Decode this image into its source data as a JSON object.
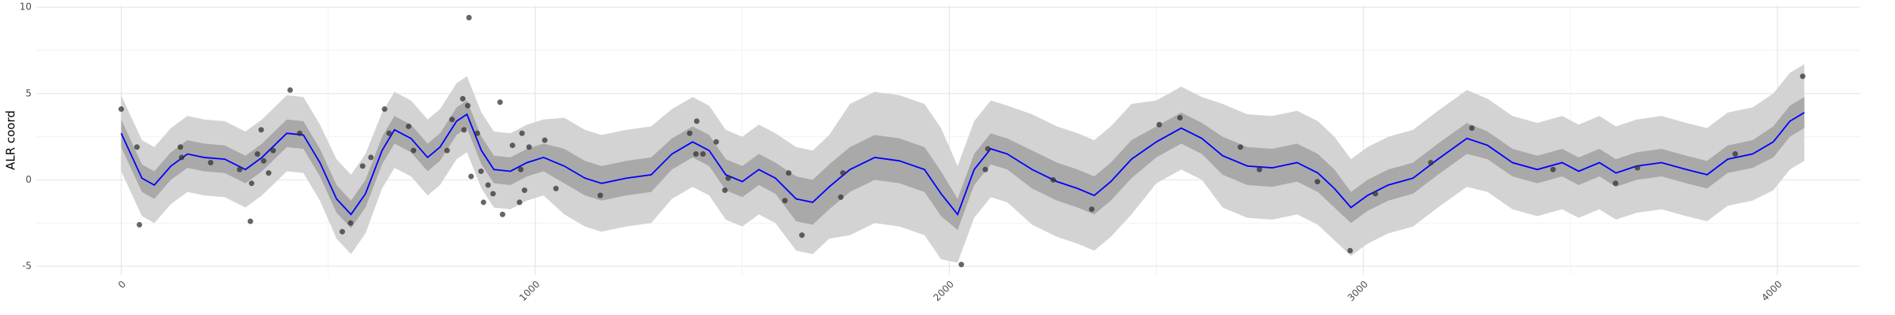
{
  "chart_data": {
    "type": "line",
    "y_label": "ALR coord",
    "xlim": [
      -205,
      4200
    ],
    "ylim": [
      -5.5,
      10.1
    ],
    "xticks": [
      0,
      1000,
      2000,
      3000,
      4000
    ],
    "yticks": [
      -5,
      0,
      5,
      10
    ],
    "xminor": [
      500,
      1500,
      2500,
      3500
    ],
    "yminor": [
      -2.5,
      2.5,
      7.5
    ],
    "grid": true,
    "x": [
      0,
      50,
      80,
      120,
      160,
      200,
      250,
      300,
      340,
      400,
      440,
      480,
      520,
      555,
      590,
      630,
      660,
      700,
      740,
      770,
      810,
      835,
      870,
      900,
      940,
      980,
      1020,
      1070,
      1120,
      1160,
      1220,
      1280,
      1330,
      1380,
      1420,
      1460,
      1500,
      1540,
      1580,
      1630,
      1670,
      1710,
      1760,
      1820,
      1880,
      1940,
      1980,
      2020,
      2060,
      2100,
      2140,
      2200,
      2260,
      2310,
      2350,
      2390,
      2440,
      2500,
      2560,
      2610,
      2660,
      2720,
      2780,
      2840,
      2890,
      2930,
      2970,
      3010,
      3060,
      3120,
      3180,
      3250,
      3300,
      3360,
      3420,
      3480,
      3520,
      3570,
      3610,
      3660,
      3720,
      3780,
      3830,
      3880,
      3940,
      3990,
      4030,
      4065
    ],
    "bands": [
      {
        "color": "#d3d3d3",
        "lower": [
          0.5,
          -2.1,
          -2.5,
          -1.4,
          -0.7,
          -0.9,
          -1.0,
          -1.6,
          -0.9,
          0.5,
          0.4,
          -1.2,
          -3.4,
          -4.3,
          -3.1,
          -0.5,
          0.7,
          0.2,
          -0.9,
          -0.3,
          1.2,
          1.6,
          -0.5,
          -1.6,
          -1.7,
          -1.2,
          -0.9,
          -2.0,
          -2.7,
          -3.0,
          -2.7,
          -2.5,
          -1.1,
          -0.4,
          -0.9,
          -2.3,
          -2.7,
          -2.0,
          -2.5,
          -4.1,
          -4.3,
          -3.4,
          -3.2,
          -2.5,
          -2.7,
          -3.2,
          -4.6,
          -4.8,
          -2.2,
          -1.0,
          -1.3,
          -2.6,
          -3.3,
          -3.7,
          -4.1,
          -3.3,
          -2.0,
          -0.2,
          0.6,
          0.0,
          -1.6,
          -2.2,
          -2.3,
          -2.0,
          -2.6,
          -3.5,
          -4.4,
          -3.7,
          -3.1,
          -2.7,
          -1.6,
          -0.4,
          -0.7,
          -1.7,
          -2.1,
          -1.7,
          -2.2,
          -1.7,
          -2.3,
          -1.9,
          -1.7,
          -2.1,
          -2.4,
          -1.5,
          -1.2,
          -0.6,
          0.6,
          1.1
        ],
        "upper": [
          4.9,
          2.3,
          1.9,
          3.0,
          3.7,
          3.5,
          3.4,
          2.8,
          3.5,
          4.9,
          4.8,
          3.2,
          1.2,
          0.3,
          1.5,
          3.9,
          5.1,
          4.6,
          3.5,
          4.1,
          5.6,
          6.0,
          3.9,
          2.8,
          2.7,
          3.2,
          3.5,
          3.6,
          2.9,
          2.6,
          2.9,
          3.1,
          4.1,
          4.8,
          4.3,
          2.9,
          2.5,
          3.2,
          2.7,
          1.9,
          1.7,
          2.6,
          4.4,
          5.1,
          4.9,
          4.4,
          3.0,
          0.8,
          3.4,
          4.6,
          4.3,
          3.8,
          3.1,
          2.7,
          2.3,
          3.1,
          4.4,
          4.6,
          5.4,
          4.8,
          4.4,
          3.8,
          3.7,
          4.0,
          3.4,
          2.5,
          1.2,
          1.9,
          2.5,
          2.9,
          4.0,
          5.2,
          4.7,
          3.7,
          3.3,
          3.7,
          3.2,
          3.7,
          3.1,
          3.5,
          3.7,
          3.3,
          3.0,
          3.9,
          4.2,
          5.0,
          6.2,
          6.7
        ]
      },
      {
        "color": "#a9a9a9",
        "lower": [
          1.9,
          -0.7,
          -1.1,
          0.0,
          0.7,
          0.5,
          0.4,
          -0.2,
          0.5,
          1.9,
          1.8,
          0.2,
          -1.9,
          -2.8,
          -1.6,
          0.9,
          2.1,
          1.6,
          0.5,
          1.1,
          2.6,
          3.0,
          0.9,
          -0.2,
          -0.3,
          0.2,
          0.5,
          -0.2,
          -0.9,
          -1.2,
          -0.9,
          -0.7,
          0.6,
          1.3,
          0.8,
          -0.6,
          -1.0,
          -0.3,
          -0.8,
          -2.4,
          -2.6,
          -1.7,
          -0.7,
          0.0,
          -0.2,
          -0.7,
          -2.1,
          -2.9,
          -0.3,
          0.9,
          0.6,
          -0.5,
          -1.2,
          -1.6,
          -2.0,
          -1.2,
          0.1,
          1.3,
          2.1,
          1.5,
          0.3,
          -0.3,
          -0.4,
          -0.1,
          -0.7,
          -1.6,
          -2.5,
          -1.8,
          -1.2,
          -0.8,
          0.3,
          1.5,
          1.2,
          0.2,
          -0.2,
          0.2,
          -0.3,
          0.2,
          -0.4,
          0.0,
          0.2,
          -0.2,
          -0.5,
          0.4,
          0.7,
          1.3,
          2.5,
          3.0
        ],
        "upper": [
          3.5,
          0.9,
          0.5,
          1.6,
          2.3,
          2.1,
          2.0,
          1.4,
          2.1,
          3.5,
          3.4,
          1.8,
          -0.3,
          -1.2,
          0.0,
          2.5,
          3.7,
          3.2,
          2.1,
          2.7,
          4.2,
          4.6,
          2.5,
          1.4,
          1.3,
          1.8,
          2.1,
          1.8,
          1.1,
          0.8,
          1.1,
          1.3,
          2.4,
          3.1,
          2.6,
          1.2,
          0.8,
          1.5,
          1.0,
          0.2,
          0.0,
          0.9,
          1.9,
          2.6,
          2.4,
          1.9,
          0.5,
          -1.1,
          1.5,
          2.7,
          2.4,
          1.7,
          1.0,
          0.6,
          0.2,
          1.0,
          2.3,
          3.1,
          3.9,
          3.3,
          2.5,
          1.9,
          1.8,
          2.1,
          1.5,
          0.6,
          -0.7,
          0.0,
          0.6,
          1.0,
          2.1,
          3.3,
          2.8,
          1.8,
          1.4,
          1.8,
          1.3,
          1.8,
          1.2,
          1.6,
          1.8,
          1.4,
          1.1,
          2.0,
          2.3,
          3.1,
          4.3,
          4.8
        ]
      }
    ],
    "series": [
      {
        "color": "#0000ff",
        "values": [
          2.7,
          0.1,
          -0.3,
          0.8,
          1.5,
          1.3,
          1.2,
          0.6,
          1.3,
          2.7,
          2.6,
          1.0,
          -1.1,
          -2.0,
          -0.8,
          1.7,
          2.9,
          2.4,
          1.3,
          1.9,
          3.4,
          3.8,
          1.7,
          0.6,
          0.5,
          1.0,
          1.3,
          0.8,
          0.1,
          -0.2,
          0.1,
          0.3,
          1.5,
          2.2,
          1.7,
          0.3,
          -0.1,
          0.6,
          0.1,
          -1.1,
          -1.3,
          -0.4,
          0.6,
          1.3,
          1.1,
          0.6,
          -0.8,
          -2.0,
          0.6,
          1.8,
          1.5,
          0.6,
          -0.1,
          -0.5,
          -0.9,
          -0.1,
          1.2,
          2.2,
          3.0,
          2.4,
          1.4,
          0.8,
          0.7,
          1.0,
          0.4,
          -0.5,
          -1.6,
          -0.9,
          -0.3,
          0.1,
          1.2,
          2.4,
          2.0,
          1.0,
          0.6,
          1.0,
          0.5,
          1.0,
          0.4,
          0.8,
          1.0,
          0.6,
          0.3,
          1.2,
          1.5,
          2.2,
          3.4,
          3.9
        ]
      }
    ],
    "points": {
      "color": "#333333",
      "x": [
        0,
        38,
        44,
        143,
        146,
        216,
        286,
        312,
        315,
        329,
        338,
        344,
        356,
        367,
        408,
        431,
        534,
        554,
        583,
        603,
        636,
        647,
        694,
        706,
        787,
        799,
        825,
        840,
        837,
        828,
        845,
        860,
        869,
        875,
        886,
        915,
        898,
        921,
        945,
        962,
        968,
        965,
        974,
        985,
        1023,
        1050,
        1157,
        1373,
        1390,
        1388,
        1405,
        1437,
        1458,
        1466,
        1603,
        1612,
        1644,
        1738,
        1743,
        2029,
        2087,
        2093,
        2251,
        2344,
        2507,
        2557,
        2703,
        2749,
        2889,
        2968,
        3029,
        3163,
        3262,
        3458,
        3609,
        3662,
        3898,
        4061
      ],
      "y": [
        4.1,
        1.9,
        -2.6,
        1.9,
        1.3,
        1.0,
        0.6,
        -2.4,
        -0.2,
        1.5,
        2.9,
        1.1,
        0.4,
        1.7,
        5.2,
        2.7,
        -3.0,
        -2.5,
        0.8,
        1.3,
        4.1,
        2.7,
        3.1,
        1.7,
        1.7,
        3.5,
        4.7,
        9.4,
        4.3,
        2.9,
        0.2,
        2.7,
        0.5,
        -1.3,
        -0.3,
        4.5,
        -0.8,
        -2.0,
        2.0,
        -1.3,
        2.7,
        0.6,
        -0.6,
        1.9,
        2.3,
        -0.5,
        -0.9,
        2.7,
        3.4,
        1.5,
        1.5,
        2.2,
        -0.6,
        0.1,
        -1.2,
        0.4,
        -3.2,
        -1.0,
        0.4,
        -4.9,
        0.6,
        1.8,
        0.0,
        -1.7,
        3.2,
        3.6,
        1.9,
        0.6,
        -0.1,
        -4.1,
        -0.8,
        1.0,
        3.0,
        0.6,
        -0.2,
        0.7,
        1.5,
        6.0
      ]
    }
  }
}
